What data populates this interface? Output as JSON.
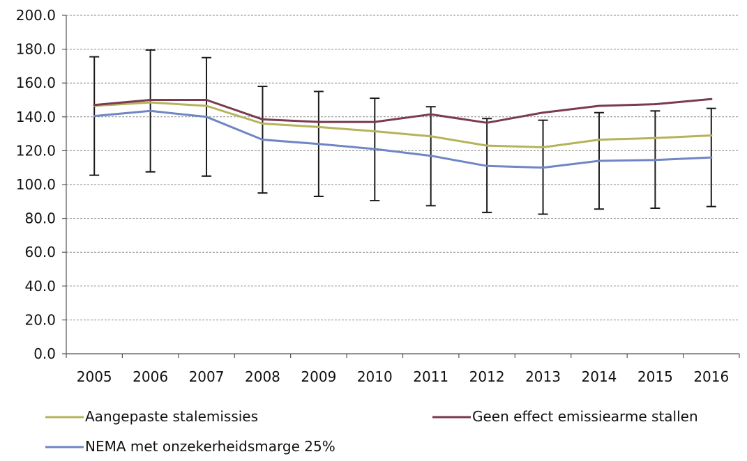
{
  "chart_data": {
    "type": "line",
    "title": "",
    "xlabel": "",
    "ylabel": "",
    "ylim": [
      0,
      200
    ],
    "y_ticks": [
      "0.0",
      "20.0",
      "40.0",
      "60.0",
      "80.0",
      "100.0",
      "120.0",
      "140.0",
      "160.0",
      "180.0",
      "200.0"
    ],
    "y_tick_values": [
      0,
      20,
      40,
      60,
      80,
      100,
      120,
      140,
      160,
      180,
      200
    ],
    "categories": [
      "2005",
      "2006",
      "2007",
      "2008",
      "2009",
      "2010",
      "2011",
      "2012",
      "2013",
      "2014",
      "2015",
      "2016"
    ],
    "grid": true,
    "legend_position": "bottom",
    "series": [
      {
        "name": "Aangepaste stalemissies",
        "color": "#b5b35a",
        "values": [
          146.5,
          148.5,
          146.5,
          136.0,
          134.0,
          131.5,
          128.5,
          123.0,
          122.0,
          126.5,
          127.5,
          129.0
        ]
      },
      {
        "name": "Geen effect emissiearme stallen",
        "color": "#7a3a4f",
        "values": [
          147.0,
          150.0,
          150.0,
          138.5,
          137.0,
          137.0,
          141.5,
          136.5,
          142.5,
          146.5,
          147.5,
          150.5
        ]
      },
      {
        "name": "NEMA met onzekerheidsmarge 25%",
        "color": "#6f86c4",
        "values": [
          140.5,
          143.5,
          140.0,
          126.5,
          124.0,
          121.0,
          117.0,
          111.0,
          110.0,
          114.0,
          114.5,
          116.0
        ],
        "error_low": [
          105.5,
          107.5,
          105.0,
          95.0,
          93.0,
          90.5,
          87.5,
          83.5,
          82.5,
          85.5,
          86.0,
          87.0
        ],
        "error_high": [
          175.5,
          179.5,
          175.0,
          158.0,
          155.0,
          151.0,
          146.0,
          139.0,
          138.0,
          142.5,
          143.5,
          145.0
        ]
      }
    ]
  },
  "legend": {
    "items": [
      {
        "label": "Aangepaste stalemissies",
        "color": "#b5b35a"
      },
      {
        "label": "Geen effect emissiearme stallen",
        "color": "#7a3a4f"
      },
      {
        "label": "NEMA met onzekerheidsmarge 25%",
        "color": "#6f86c4"
      }
    ]
  }
}
